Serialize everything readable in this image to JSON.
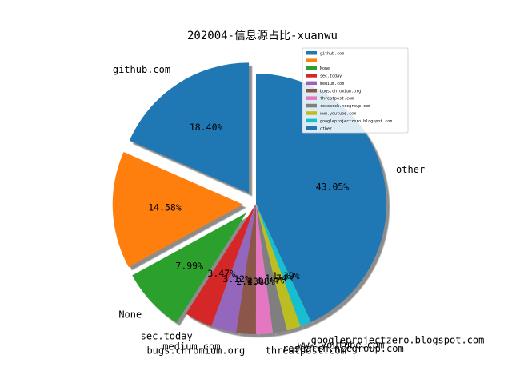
{
  "chart_data": {
    "type": "pie",
    "title": "202004-信息源占比-xuanwu",
    "shadow": true,
    "legend_placement": "top-right",
    "slices": [
      {
        "label": "github.com",
        "pct_text": "18.40%",
        "value": 18.4,
        "color": "#1f77b4",
        "explode": true
      },
      {
        "label": "",
        "pct_text": "14.58%",
        "value": 14.58,
        "color": "#ff7f0e",
        "explode": true
      },
      {
        "label": "None",
        "pct_text": "7.99%",
        "value": 7.99,
        "color": "#2ca02c",
        "explode": true
      },
      {
        "label": "sec.today",
        "pct_text": "3.47%",
        "value": 3.47,
        "color": "#d62728",
        "explode": false
      },
      {
        "label": "medium.com",
        "pct_text": "3.12%",
        "value": 3.12,
        "color": "#9467bd",
        "explode": false
      },
      {
        "label": "bugs.chromium.org",
        "pct_text": "2.43%",
        "value": 2.43,
        "color": "#8c564b",
        "explode": false
      },
      {
        "label": "threatpost.com",
        "pct_text": "2.08%",
        "value": 2.08,
        "color": "#e377c2",
        "explode": false
      },
      {
        "label": "research.nccgroup.com",
        "pct_text": "1.74%",
        "value": 1.74,
        "color": "#7f7f7f",
        "explode": false
      },
      {
        "label": "www.youtube.com",
        "pct_text": "1.74%",
        "value": 1.74,
        "color": "#bcbd22",
        "explode": false
      },
      {
        "label": "googleprojectzero.blogspot.com",
        "pct_text": "1.39%",
        "value": 1.39,
        "color": "#17becf",
        "explode": false
      },
      {
        "label": "other",
        "pct_text": "43.05%",
        "value": 43.05,
        "color": "#1f77b4",
        "explode": false
      }
    ]
  }
}
